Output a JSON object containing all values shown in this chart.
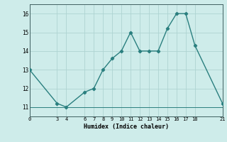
{
  "x": [
    0,
    3,
    4,
    6,
    7,
    8,
    9,
    10,
    11,
    12,
    13,
    14,
    15,
    16,
    17,
    18,
    21
  ],
  "y": [
    13,
    11.2,
    11.0,
    11.8,
    12.0,
    13.0,
    13.6,
    14.0,
    15.0,
    14.0,
    14.0,
    14.0,
    15.2,
    16.0,
    16.0,
    14.3,
    11.2
  ],
  "xlim": [
    0,
    21
  ],
  "ylim": [
    10.5,
    16.5
  ],
  "xticks": [
    0,
    3,
    4,
    6,
    7,
    8,
    9,
    10,
    11,
    12,
    13,
    14,
    15,
    16,
    17,
    18,
    21
  ],
  "yticks": [
    11,
    12,
    13,
    14,
    15,
    16
  ],
  "xlabel": "Humidex (Indice chaleur)",
  "line_color": "#2a7f7f",
  "bg_color": "#ceecea",
  "grid_color": "#aed4d2",
  "marker": "D",
  "marker_size": 2.2,
  "line_width": 1.0
}
